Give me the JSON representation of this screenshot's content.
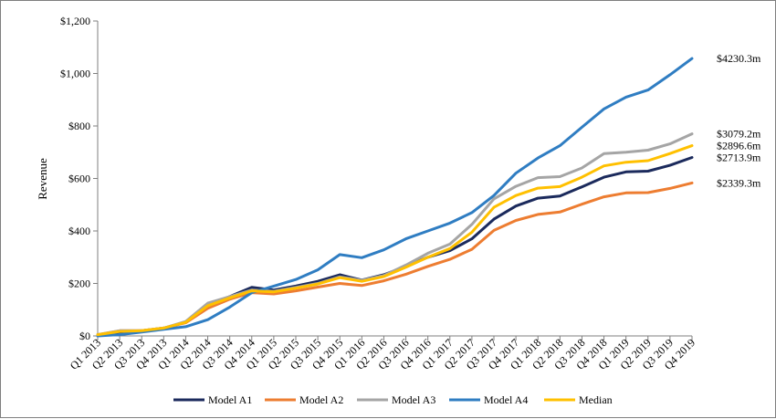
{
  "chart_data": {
    "type": "line",
    "ylabel": "Revenue",
    "xlabel": "",
    "ylim": [
      0,
      1200
    ],
    "yticks": [
      0,
      200,
      400,
      600,
      800,
      1000,
      1200
    ],
    "ytick_labels": [
      "$0",
      "$200",
      "$400",
      "$600",
      "$800",
      "$1,000",
      "$1,200"
    ],
    "grid": false,
    "legend_position": "bottom",
    "categories": [
      "Q1 2013",
      "Q2 2013",
      "Q3 2013",
      "Q4 2013",
      "Q1 2014",
      "Q2 2014",
      "Q3 2014",
      "Q4 2014",
      "Q1 2015",
      "Q2 2015",
      "Q3 2015",
      "Q4 2015",
      "Q1 2016",
      "Q2 2016",
      "Q3 2016",
      "Q4 2016",
      "Q1 2017",
      "Q2 2017",
      "Q3 2017",
      "Q4 2017",
      "Q1 2018",
      "Q2 2018",
      "Q3 2018",
      "Q4 2018",
      "Q1 2019",
      "Q2 2019",
      "Q3 2019",
      "Q4 2019"
    ],
    "series": [
      {
        "name": "Model A1",
        "color": "#1b2a5c",
        "end_label": "$2713.9m",
        "values": [
          5,
          15,
          20,
          30,
          52,
          120,
          150,
          185,
          175,
          190,
          208,
          233,
          213,
          233,
          265,
          300,
          325,
          370,
          445,
          495,
          525,
          533,
          568,
          605,
          625,
          628,
          650,
          680
        ]
      },
      {
        "name": "Model A2",
        "color": "#ed7d31",
        "end_label": "$2339.3m",
        "values": [
          5,
          20,
          20,
          30,
          50,
          105,
          140,
          165,
          160,
          172,
          186,
          200,
          192,
          210,
          235,
          265,
          292,
          330,
          402,
          440,
          463,
          472,
          502,
          530,
          545,
          546,
          562,
          583
        ]
      },
      {
        "name": "Model A3",
        "color": "#a5a5a5",
        "end_label": "$3079.2m",
        "values": [
          5,
          20,
          20,
          30,
          55,
          125,
          150,
          175,
          170,
          185,
          200,
          225,
          212,
          230,
          270,
          315,
          350,
          425,
          522,
          570,
          603,
          607,
          640,
          695,
          700,
          708,
          732,
          770
        ]
      },
      {
        "name": "Model A4",
        "color": "#2f7dc2",
        "end_label": "$4230.3m",
        "values": [
          0,
          5,
          15,
          25,
          35,
          62,
          110,
          165,
          190,
          215,
          252,
          310,
          298,
          328,
          370,
          400,
          430,
          470,
          535,
          620,
          678,
          725,
          795,
          865,
          910,
          937,
          995,
          1057
        ]
      },
      {
        "name": "Median",
        "color": "#ffc000",
        "end_label": "$2896.6m",
        "values": [
          5,
          17,
          20,
          30,
          52,
          115,
          145,
          172,
          168,
          182,
          198,
          222,
          208,
          226,
          262,
          300,
          333,
          395,
          490,
          535,
          563,
          569,
          605,
          648,
          662,
          668,
          695,
          725
        ]
      }
    ]
  }
}
